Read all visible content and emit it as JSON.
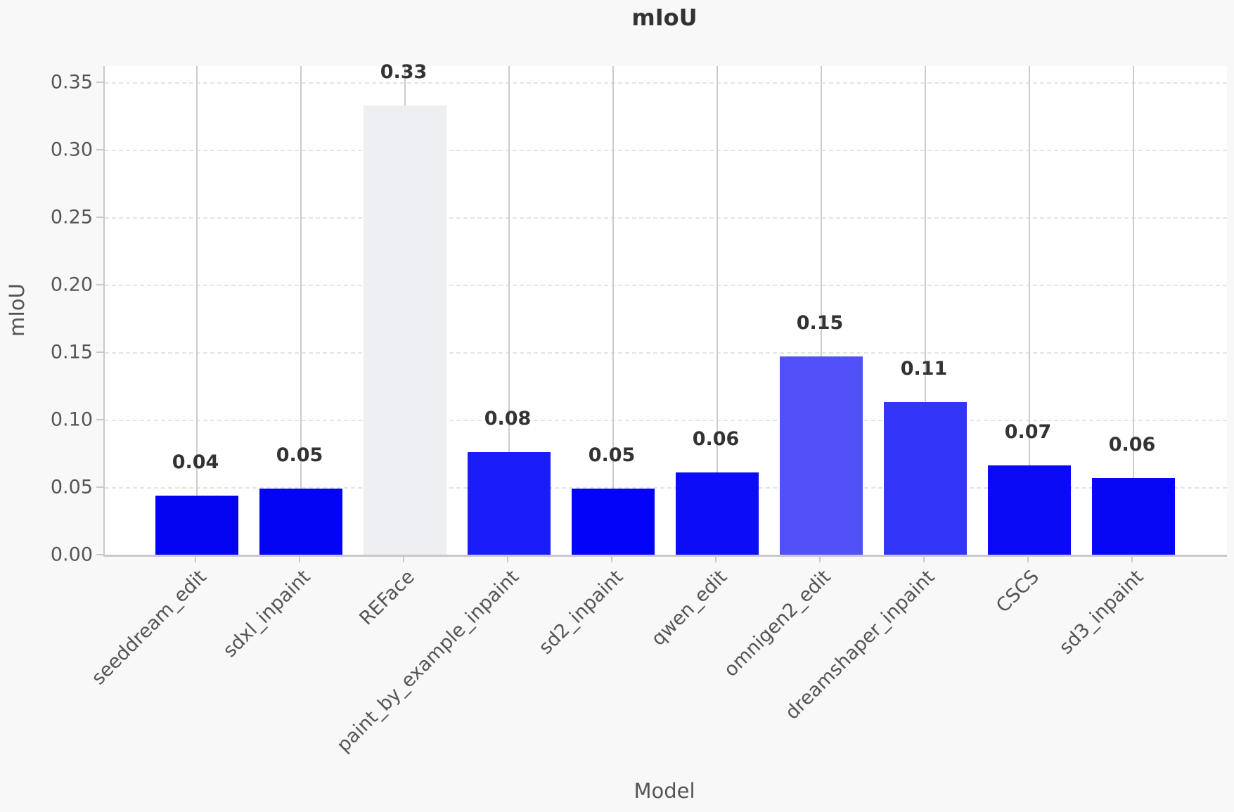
{
  "chart_data": {
    "type": "bar",
    "title": "mIoU",
    "xlabel": "Model",
    "ylabel": "mIoU",
    "categories": [
      "seeddream_edit",
      "sdxl_inpaint",
      "REFace",
      "paint_by_example_inpaint",
      "sd2_inpaint",
      "qwen_edit",
      "omnigen2_edit",
      "dreamshaper_inpaint",
      "CSCS",
      "sd3_inpaint"
    ],
    "values": [
      0.044,
      0.049,
      0.333,
      0.076,
      0.049,
      0.061,
      0.147,
      0.113,
      0.066,
      0.057
    ],
    "bar_labels": [
      "0.04",
      "0.05",
      "0.33",
      "0.08",
      "0.05",
      "0.06",
      "0.15",
      "0.11",
      "0.07",
      "0.06"
    ],
    "bar_colors": [
      "#0404F2",
      "#0404F4",
      "#EEEFF2",
      "#1B1CFA",
      "#0303F8",
      "#0C0DF6",
      "#5051F8",
      "#3336F9",
      "#0A0AF6",
      "#0707F5"
    ],
    "yticks": [
      "0.00",
      "0.05",
      "0.10",
      "0.15",
      "0.20",
      "0.25",
      "0.30",
      "0.35"
    ],
    "ylim": [
      0,
      0.362
    ],
    "grid": {
      "horizontal": "dashed",
      "vertical": "solid"
    },
    "legend": "none",
    "colors": {
      "figure_background": "#F8F8F8",
      "plot_background": "#FFFFFF",
      "grid_vertical": "#CCCCCC",
      "grid_horizontal": "#E4E4E4",
      "axis_spine": "#C9C9C9",
      "title_text": "#333333",
      "value_label_text": "#333333",
      "tick_text": "#555555",
      "axis_label_text": "#555555"
    }
  }
}
